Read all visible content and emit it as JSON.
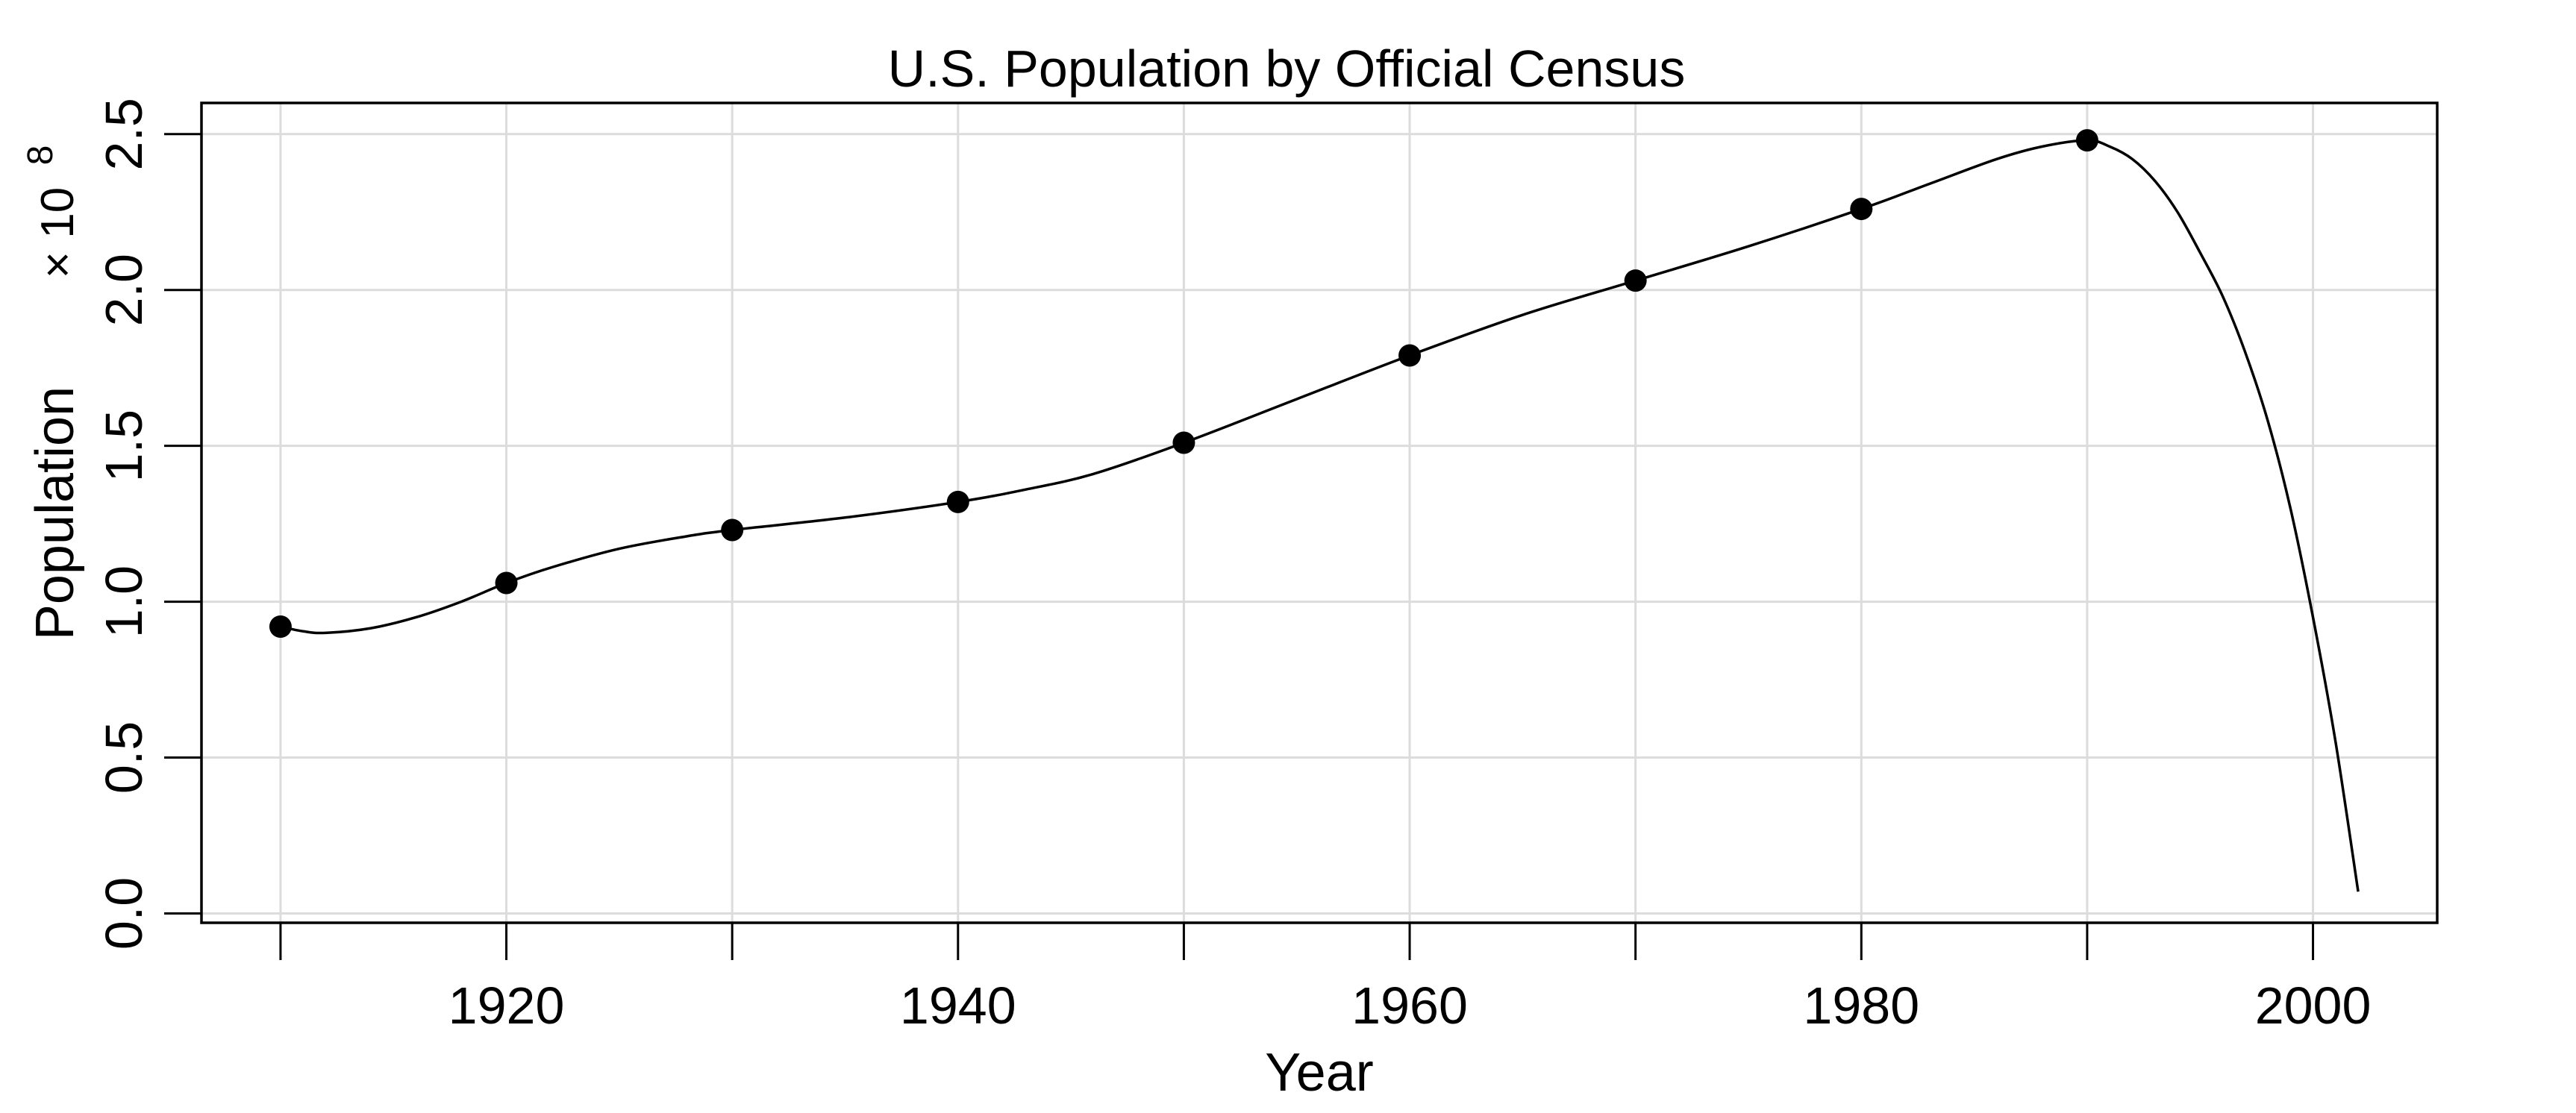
{
  "chart_data": {
    "type": "line",
    "title": "U.S. Population by Official Census",
    "xlabel": "Year",
    "ylabel": "Population",
    "y_multiplier": "× 10",
    "y_multiplier_exponent": "8",
    "xlim": [
      1906.5,
      2005.5
    ],
    "ylim": [
      -0.03,
      2.6
    ],
    "x_ticks": [
      1910,
      1920,
      1930,
      1940,
      1950,
      1960,
      1970,
      1980,
      1990,
      2000
    ],
    "x_tick_labels": [
      "1920",
      "1940",
      "1960",
      "1980",
      "2000"
    ],
    "x_tick_label_values": [
      1920,
      1940,
      1960,
      1980,
      2000
    ],
    "y_ticks": [
      0.0,
      0.5,
      1.0,
      1.5,
      2.0,
      2.5
    ],
    "y_tick_labels": [
      "0.0",
      "0.5",
      "1.0",
      "1.5",
      "2.0",
      "2.5"
    ],
    "grid": true,
    "series": [
      {
        "points": {
          "x": [
            1910,
            1920,
            1930,
            1940,
            1950,
            1960,
            1970,
            1980,
            1990
          ],
          "y": [
            0.92,
            1.06,
            1.23,
            1.32,
            1.51,
            1.79,
            2.03,
            2.26,
            2.48
          ]
        },
        "curve": {
          "x": [
            1910,
            1911,
            1912,
            1914,
            1916,
            1918,
            1920,
            1922,
            1925,
            1928,
            1930,
            1935,
            1940,
            1943,
            1946,
            1950,
            1955,
            1960,
            1965,
            1970,
            1975,
            1980,
            1983,
            1986,
            1988,
            1990,
            1991,
            1992,
            1993,
            1994,
            1995,
            1996,
            1997,
            1998,
            1999,
            2000,
            2001,
            2002
          ],
          "y": [
            0.92,
            0.905,
            0.9,
            0.915,
            0.95,
            1.0,
            1.06,
            1.11,
            1.17,
            1.21,
            1.23,
            1.27,
            1.32,
            1.36,
            1.41,
            1.51,
            1.65,
            1.79,
            1.92,
            2.03,
            2.14,
            2.26,
            2.34,
            2.42,
            2.46,
            2.48,
            2.46,
            2.42,
            2.35,
            2.25,
            2.12,
            1.98,
            1.8,
            1.58,
            1.3,
            0.95,
            0.55,
            0.07
          ]
        }
      }
    ]
  }
}
